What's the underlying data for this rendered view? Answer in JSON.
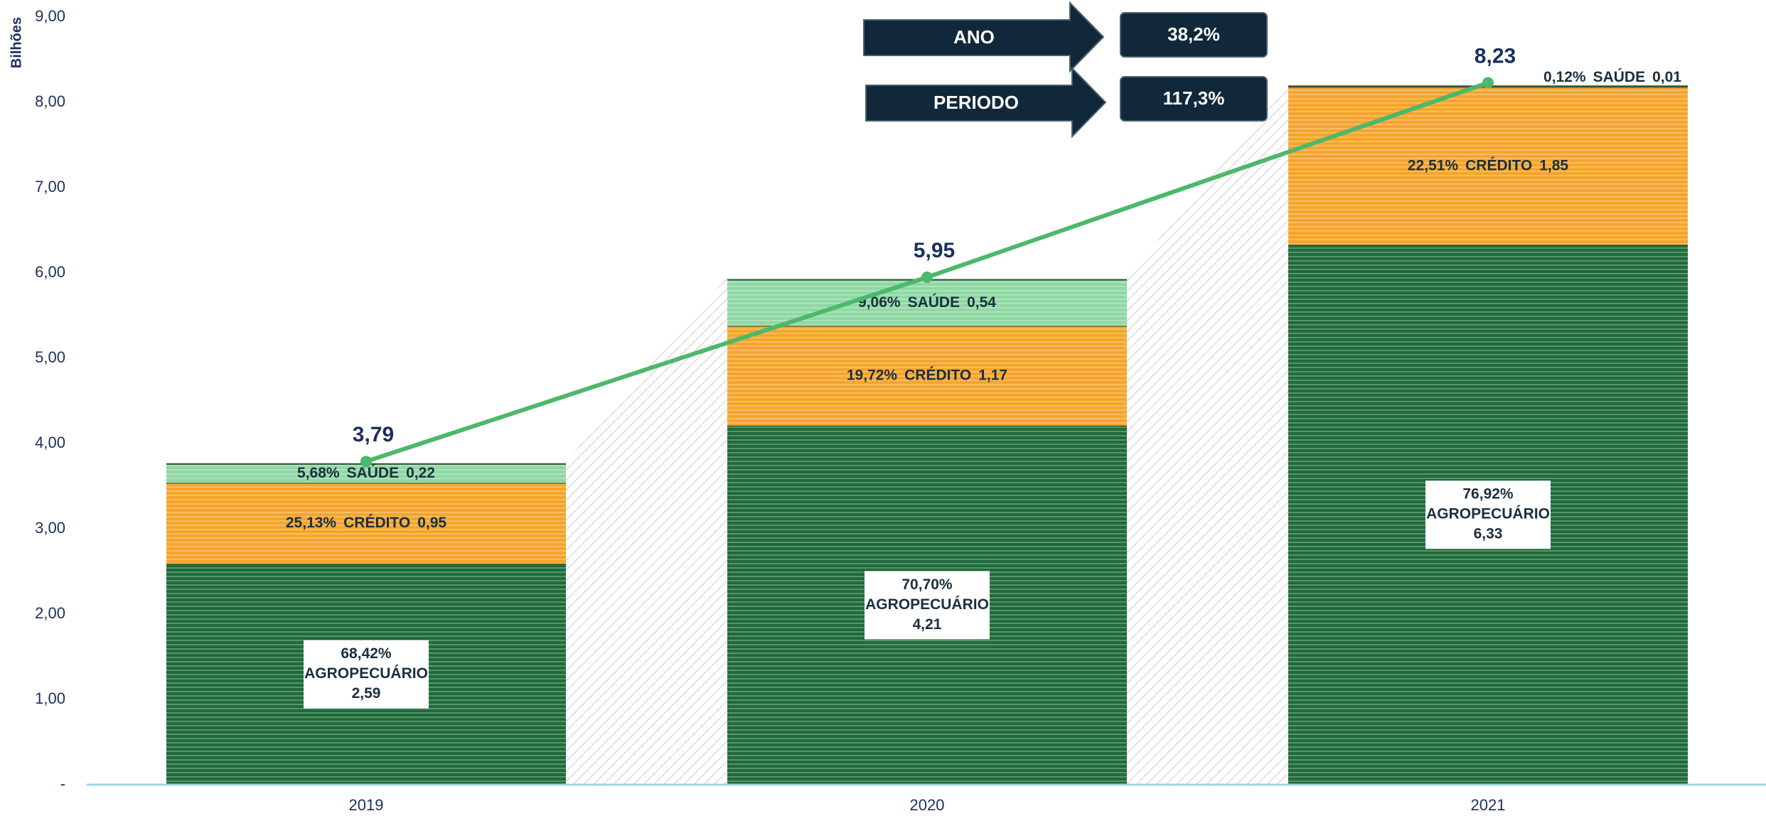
{
  "chart_data": {
    "type": "stacked_bar",
    "y_label": "Bilhões",
    "categories": [
      "2019",
      "2020",
      "2021"
    ],
    "series": [
      {
        "name": "AGROPECUÁRIO",
        "color": "#1f6b3b",
        "values": [
          2.59,
          4.21,
          6.33
        ],
        "value_labels": [
          "2,59",
          "4,21",
          "6,33"
        ],
        "percent_labels": [
          "68,42%",
          "70,70%",
          "76,92%"
        ]
      },
      {
        "name": "CRÉDITO",
        "color": "#f5a52c",
        "values": [
          0.95,
          1.17,
          1.85
        ],
        "value_labels": [
          "0,95",
          "1,17",
          "1,85"
        ],
        "percent_labels": [
          "25,13%",
          "19,72%",
          "22,51%"
        ]
      },
      {
        "name": "SAÚDE",
        "color": "#8fd8a4",
        "values": [
          0.22,
          0.54,
          0.01
        ],
        "value_labels": [
          "0,22",
          "0,54",
          "0,01"
        ],
        "percent_labels": [
          "5,68%",
          "9,06%",
          "0,12%"
        ]
      }
    ],
    "totals": {
      "color": "#4cb86b",
      "values": [
        3.79,
        5.95,
        8.23
      ],
      "value_labels": [
        "3,79",
        "5,95",
        "8,23"
      ]
    },
    "ylim": [
      0,
      9
    ],
    "yticks": [
      {
        "value": 0,
        "label": "-"
      },
      {
        "value": 1,
        "label": "1,00"
      },
      {
        "value": 2,
        "label": "2,00"
      },
      {
        "value": 3,
        "label": "3,00"
      },
      {
        "value": 4,
        "label": "4,00"
      },
      {
        "value": 5,
        "label": "5,00"
      },
      {
        "value": 6,
        "label": "6,00"
      },
      {
        "value": 7,
        "label": "7,00"
      },
      {
        "value": 8,
        "label": "8,00"
      },
      {
        "value": 9,
        "label": "9,00"
      }
    ],
    "annotations": [
      {
        "label": "ANO",
        "value_label": "38,2%"
      },
      {
        "label": "PERIODO",
        "value_label": "117,3%"
      }
    ]
  }
}
